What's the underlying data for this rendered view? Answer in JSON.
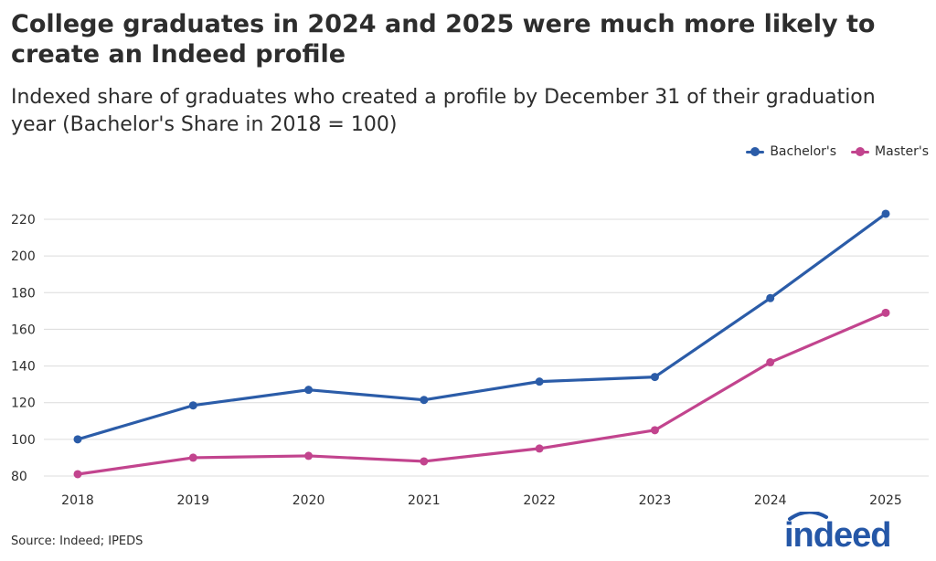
{
  "header": {
    "title": "College graduates in 2024 and 2025 were much more likely to create an Indeed profile",
    "subtitle": "Indexed share of graduates who created a profile by December 31 of their graduation year (Bachelor's Share in 2018 = 100)"
  },
  "footer": {
    "source": "Source: Indeed; IPEDS",
    "logo_text": "indeed"
  },
  "chart_data": {
    "type": "line",
    "title": "College graduates in 2024 and 2025 were much more likely to create an Indeed profile",
    "subtitle": "Indexed share of graduates who created a profile by December 31 of their graduation year (Bachelor's Share in 2018 = 100)",
    "x": [
      "2018",
      "2019",
      "2020",
      "2021",
      "2022",
      "2023",
      "2024",
      "2025"
    ],
    "series": [
      {
        "name": "Bachelor's",
        "color": "#2b5ca8",
        "values": [
          100,
          118.5,
          127,
          121.5,
          131.5,
          134,
          177,
          223
        ]
      },
      {
        "name": "Master's",
        "color": "#c2448e",
        "values": [
          81,
          90,
          91,
          88,
          95,
          105,
          142,
          169
        ]
      }
    ],
    "ylim": [
      80,
      220
    ],
    "yticks": [
      80,
      100,
      120,
      140,
      160,
      180,
      200,
      220
    ],
    "xlabel": "",
    "ylabel": "",
    "grid": true,
    "legend_position": "top-right"
  }
}
